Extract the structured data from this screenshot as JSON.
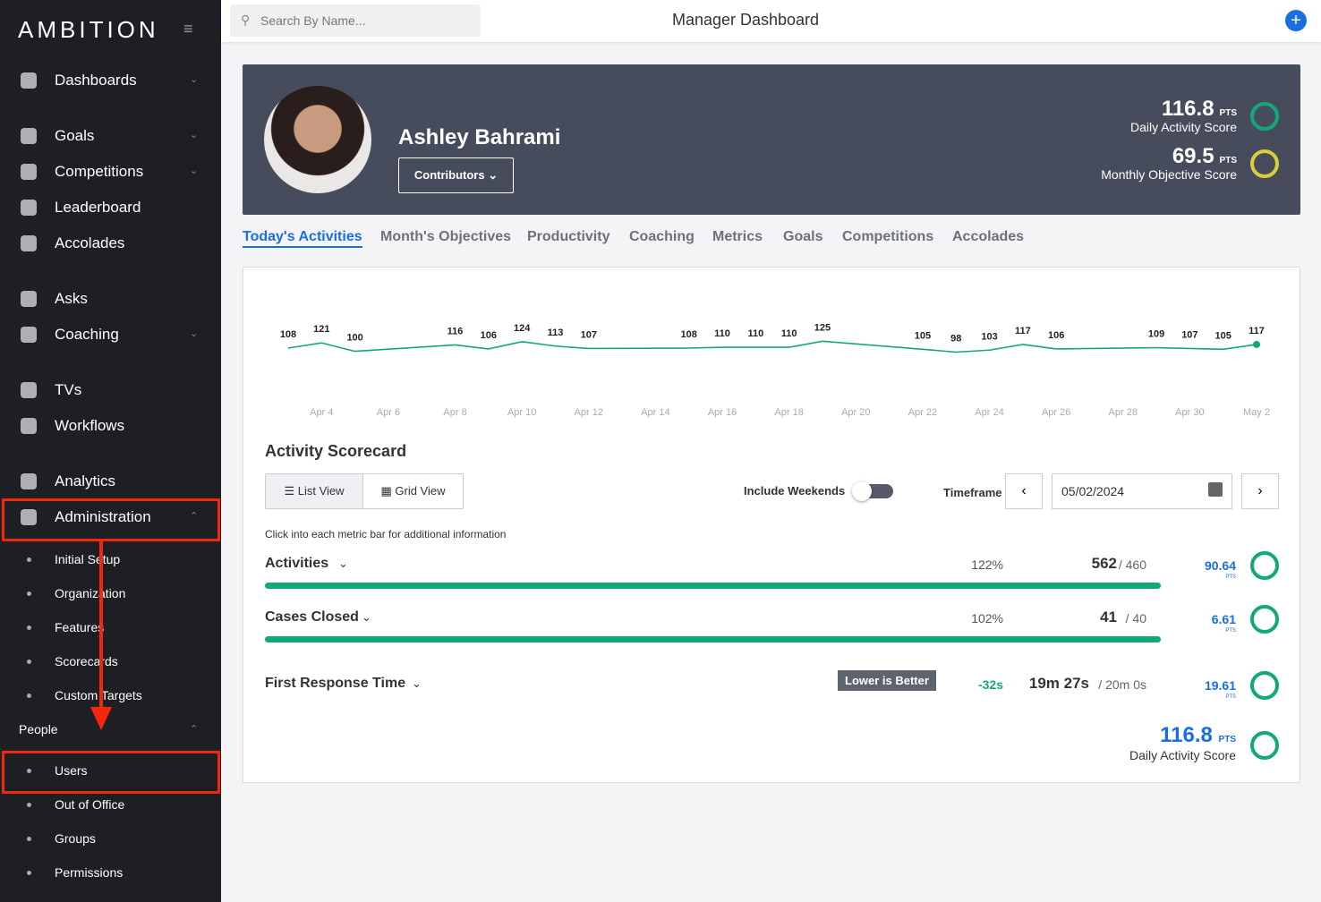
{
  "sidebar": {
    "logo": "AMBITION",
    "items": [
      "Dashboards",
      "Goals",
      "Competitions",
      "Leaderboard",
      "Accolades",
      "Asks",
      "Coaching",
      "TVs",
      "Workflows",
      "Analytics",
      "Administration"
    ],
    "admin_items": [
      "Initial Setup",
      "Organization",
      "Features",
      "Scorecards",
      "Custom Targets"
    ],
    "people_title": "People",
    "people_items": [
      "Users",
      "Out of Office",
      "Groups",
      "Permissions"
    ]
  },
  "header": {
    "search_placeholder": "Search By Name...",
    "title": "Manager Dashboard"
  },
  "profile": {
    "name": "Ashley Bahrami",
    "button": "Contributors",
    "scores": [
      {
        "value": 116.8,
        "unit": "PTS",
        "label": "Daily Activity Score"
      },
      {
        "value": 69.5,
        "unit": "PTS",
        "label": "Monthly Objective Score"
      }
    ]
  },
  "tabs": [
    "Today's Activities",
    "Month's Objectives",
    "Productivity",
    "Coaching",
    "Metrics",
    "Goals",
    "Competitions",
    "Accolades"
  ],
  "chart_data": {
    "type": "line",
    "categories": [
      null,
      "Apr 4",
      null,
      "Apr 6",
      null,
      "Apr 8",
      null,
      "Apr 10",
      null,
      "Apr 12",
      null,
      "Apr 14",
      null,
      "Apr 16",
      null,
      "Apr 18",
      null,
      "Apr 20",
      null,
      "Apr 22",
      null,
      "Apr 24",
      null,
      "Apr 26",
      null,
      "Apr 28",
      null,
      "Apr 30",
      null,
      "May 2"
    ],
    "values": [
      108,
      121,
      100,
      null,
      null,
      116,
      106,
      124,
      113,
      107,
      null,
      null,
      108,
      110,
      110,
      110,
      125,
      null,
      null,
      105,
      98,
      103,
      117,
      106,
      null,
      null,
      109,
      107,
      105,
      117
    ],
    "color": "#12a877"
  },
  "scorecard": {
    "title": "Activity Scorecard",
    "list_view": "List View",
    "grid_view": "Grid View",
    "include_weekends": "Include Weekends",
    "timeframe": "Timeframe",
    "date": "05/02/2024",
    "hint": "Click into each metric bar for additional information",
    "metrics": [
      {
        "name": "Activities",
        "change": "122%",
        "value": "562",
        "target": "/ 460",
        "points": 90.64,
        "unit": "PTS"
      },
      {
        "name": "Cases Closed",
        "change": "102%",
        "value": "41",
        "target": "/ 40",
        "points": 6.61,
        "unit": "PTS"
      },
      {
        "name": "First Response Time",
        "badge": "Lower is Better",
        "change": "-32s",
        "value": "19m 27s",
        "target": "/ 20m 0s",
        "points": 19.61,
        "unit": "PTS"
      }
    ],
    "total": {
      "value": 116.8,
      "unit": "PTS",
      "label": "Daily Activity Score"
    }
  }
}
